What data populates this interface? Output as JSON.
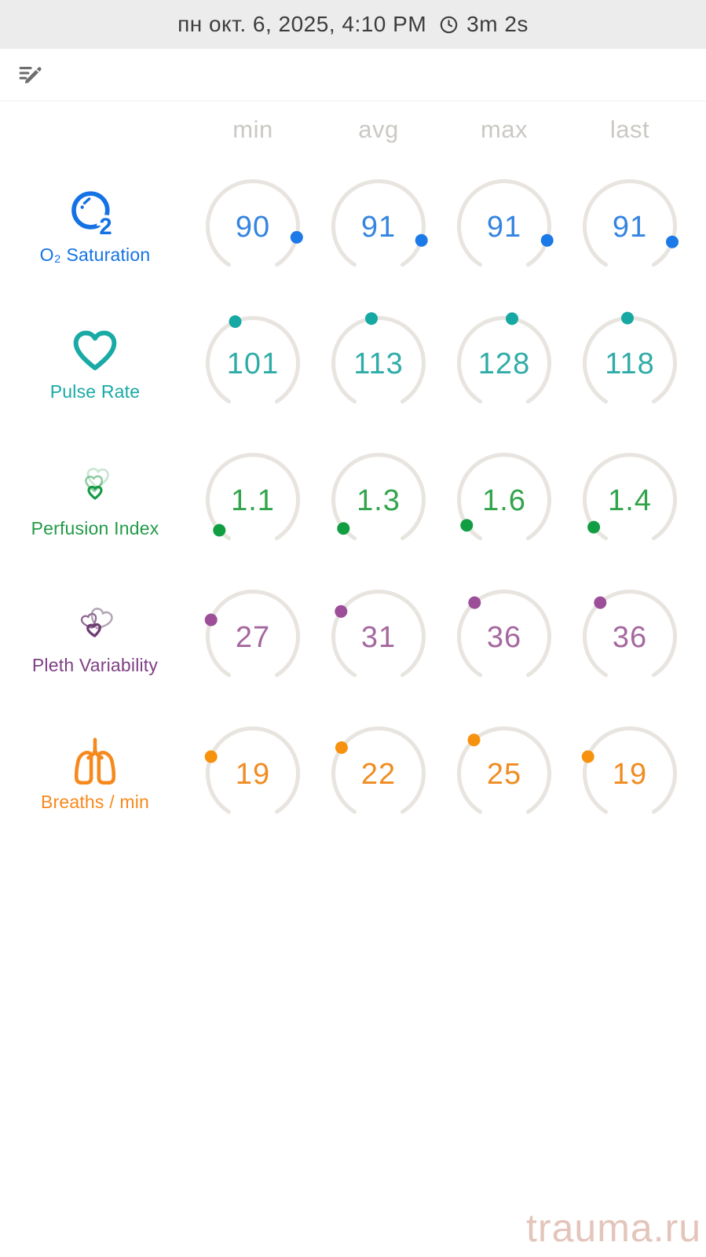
{
  "header": {
    "date_text": "пн окт. 6, 2025, 4:10 PM",
    "clock_icon": "clock-icon",
    "duration": "3m 2s"
  },
  "toolbar": {
    "edit_icon": "edit-note-icon"
  },
  "columns": [
    "min",
    "avg",
    "max",
    "last"
  ],
  "gauge": {
    "track_color": "#e8e4df"
  },
  "rows": [
    {
      "id": "o2-saturation",
      "label": "O₂ Saturation",
      "icon": "o2-bubble-icon",
      "label_color": "#1472e4",
      "value_color": "#3484e0",
      "dot_color": "#1b79e8",
      "cells": [
        {
          "column": "min",
          "value": "90",
          "dot_angle": 104
        },
        {
          "column": "avg",
          "value": "91",
          "dot_angle": 108
        },
        {
          "column": "max",
          "value": "91",
          "dot_angle": 108
        },
        {
          "column": "last",
          "value": "91",
          "dot_angle": 110
        }
      ]
    },
    {
      "id": "pulse-rate",
      "label": "Pulse Rate",
      "icon": "heart-icon",
      "label_color": "#19aaa5",
      "value_color": "#30aca8",
      "dot_color": "#16a8a2",
      "cells": [
        {
          "column": "min",
          "value": "101",
          "dot_angle": 337
        },
        {
          "column": "avg",
          "value": "113",
          "dot_angle": 351
        },
        {
          "column": "max",
          "value": "128",
          "dot_angle": 10
        },
        {
          "column": "last",
          "value": "118",
          "dot_angle": 357
        }
      ]
    },
    {
      "id": "perfusion-index",
      "label": "Perfusion Index",
      "icon": "nested-hearts-icon",
      "label_color": "#229a47",
      "value_color": "#31a44c",
      "dot_color": "#119e43",
      "cells": [
        {
          "column": "min",
          "value": "1.1",
          "dot_angle": 228
        },
        {
          "column": "avg",
          "value": "1.3",
          "dot_angle": 231
        },
        {
          "column": "max",
          "value": "1.6",
          "dot_angle": 236
        },
        {
          "column": "last",
          "value": "1.4",
          "dot_angle": 233
        }
      ]
    },
    {
      "id": "pleth-variability",
      "label": "Pleth Variability",
      "icon": "overlap-hearts-icon",
      "label_color": "#7f3f85",
      "value_color": "#a5689f",
      "dot_color": "#9c4f98",
      "cells": [
        {
          "column": "min",
          "value": "27",
          "dot_angle": 292
        },
        {
          "column": "avg",
          "value": "31",
          "dot_angle": 304
        },
        {
          "column": "max",
          "value": "36",
          "dot_angle": 319
        },
        {
          "column": "last",
          "value": "36",
          "dot_angle": 319
        }
      ]
    },
    {
      "id": "breaths-per-min",
      "label": "Breaths / min",
      "icon": "lungs-icon",
      "label_color": "#f6891d",
      "value_color": "#f08c22",
      "dot_color": "#f6920d",
      "cells": [
        {
          "column": "min",
          "value": "19",
          "dot_angle": 292
        },
        {
          "column": "avg",
          "value": "22",
          "dot_angle": 305
        },
        {
          "column": "max",
          "value": "25",
          "dot_angle": 318
        },
        {
          "column": "last",
          "value": "19",
          "dot_angle": 292
        }
      ]
    }
  ],
  "watermark": {
    "text": "trauma.ru",
    "color": "#e4c5bb"
  }
}
